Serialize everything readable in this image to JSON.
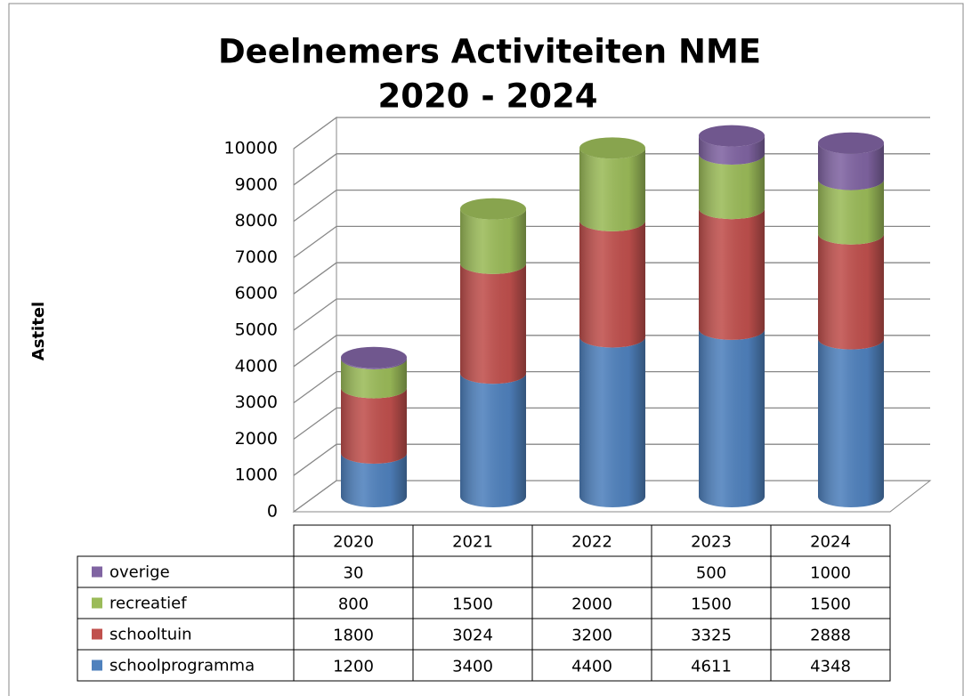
{
  "chart_data": {
    "type": "stacked-cylinder",
    "title": "Deelnemers Activiteiten NME",
    "subtitle": "2020 - 2024",
    "y_label": "Astitel",
    "categories": [
      "2020",
      "2021",
      "2022",
      "2023",
      "2024"
    ],
    "series": [
      {
        "name": "overige",
        "color": "#8064a2",
        "values": [
          30,
          null,
          null,
          500,
          1000
        ]
      },
      {
        "name": "recreatief",
        "color": "#9bbb59",
        "values": [
          800,
          1500,
          2000,
          1500,
          1500
        ]
      },
      {
        "name": "schooltuin",
        "color": "#c0504d",
        "values": [
          1800,
          3024,
          3200,
          3325,
          2888
        ]
      },
      {
        "name": "schoolprogramma",
        "color": "#4f81bd",
        "values": [
          1200,
          3400,
          4400,
          4611,
          4348
        ]
      }
    ],
    "ylim": [
      0,
      10000
    ],
    "yticks": [
      0,
      1000,
      2000,
      3000,
      4000,
      5000,
      6000,
      7000,
      8000,
      9000,
      10000
    ],
    "grid": true
  }
}
